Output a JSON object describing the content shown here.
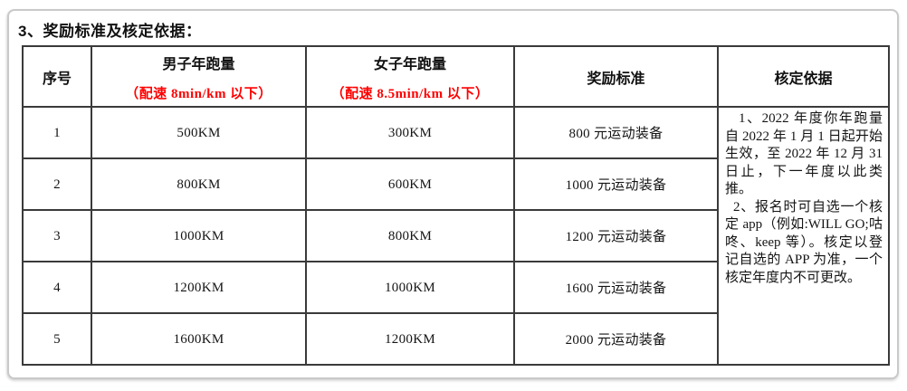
{
  "page": {
    "title": "3、奖励标准及核定依据："
  },
  "colors": {
    "accent_red": "#ff0000",
    "text": "#141414",
    "table_border": "#3a3a3a",
    "card_border": "#c9c9c9",
    "background": "#ffffff"
  },
  "table": {
    "headers": {
      "index": "序号",
      "men_title": "男子年跑量",
      "men_note": "（配速 8min/km 以下）",
      "women_title": "女子年跑量",
      "women_note": "（配速 8.5min/km 以下）",
      "reward": "奖励标准",
      "basis": "核定依据"
    },
    "rows": [
      {
        "index": "1",
        "men": "500KM",
        "women": "300KM",
        "reward": "800 元运动装备"
      },
      {
        "index": "2",
        "men": "800KM",
        "women": "600KM",
        "reward": "1000 元运动装备"
      },
      {
        "index": "3",
        "men": "1000KM",
        "women": "800KM",
        "reward": "1200 元运动装备"
      },
      {
        "index": "4",
        "men": "1200KM",
        "women": "1000KM",
        "reward": "1600 元运动装备"
      },
      {
        "index": "5",
        "men": "1600KM",
        "women": "1200KM",
        "reward": "2000 元运动装备"
      }
    ],
    "basis_notes": [
      "1、2022 年度你年跑量自 2022 年 1 月 1 日起开始生效，至 2022 年 12 月 31 日止，下一年度以此类推。",
      "2、报名时可自选一个核定 app（例如:WILL GO;咕咚、keep 等）。核定以登记自选的 APP 为准，一个核定年度内不可更改。"
    ]
  }
}
